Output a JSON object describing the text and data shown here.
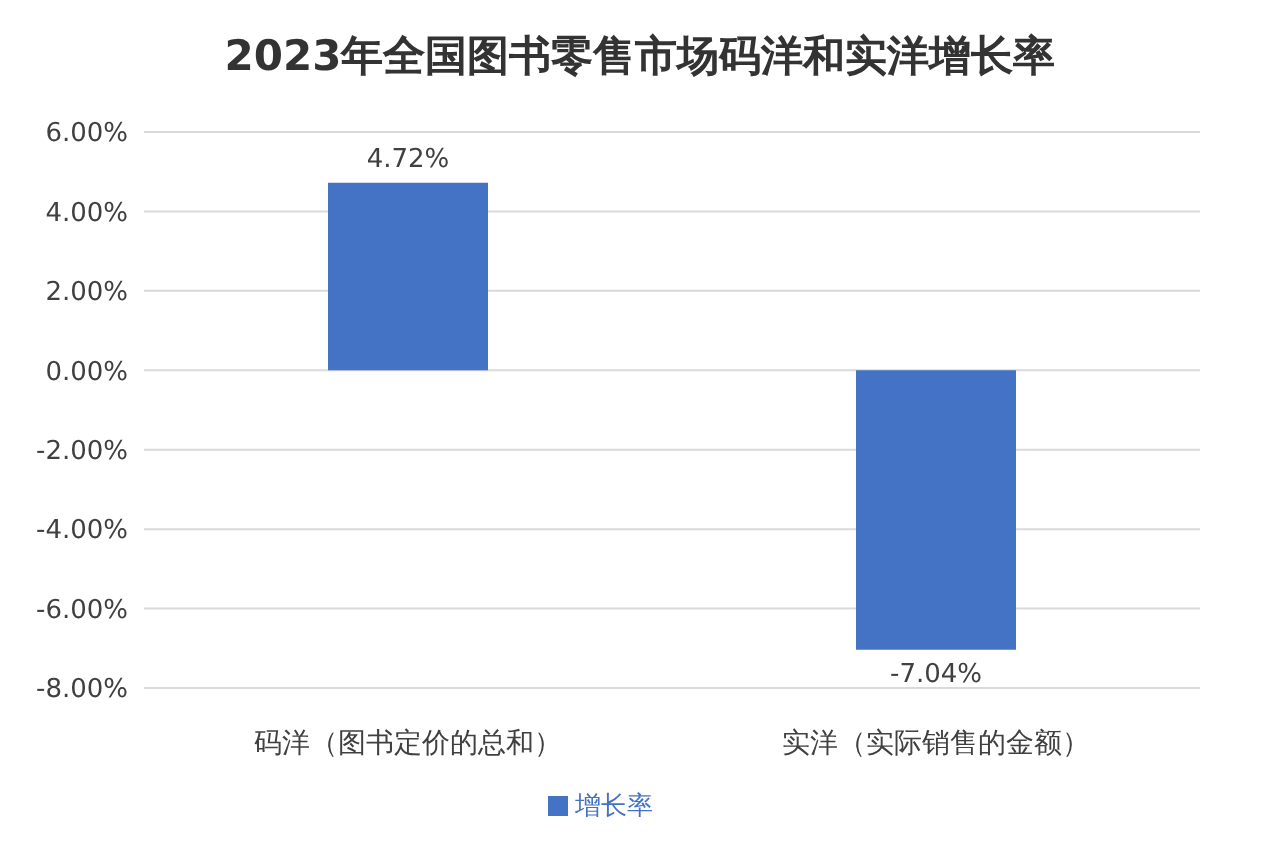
{
  "chart_data": {
    "type": "bar",
    "title": "2023年全国图书零售市场码洋和实洋增长率",
    "categories": [
      "码洋（图书定价的总和）",
      "实洋（实际销售的金额）"
    ],
    "series": [
      {
        "name": "增长率",
        "color": "#4472c4",
        "values": [
          4.72,
          -7.04
        ],
        "value_labels": [
          "4.72%",
          "-7.04%"
        ]
      }
    ],
    "ylim": [
      -8,
      6
    ],
    "yticks": [
      {
        "value": 6,
        "label": "6.00%"
      },
      {
        "value": 4,
        "label": "4.00%"
      },
      {
        "value": 2,
        "label": "2.00%"
      },
      {
        "value": 0,
        "label": "0.00%"
      },
      {
        "value": -2,
        "label": "-2.00%"
      },
      {
        "value": -4,
        "label": "-4.00%"
      },
      {
        "value": -6,
        "label": "-6.00%"
      },
      {
        "value": -8,
        "label": "-8.00%"
      }
    ],
    "grid": "y",
    "legend": "bottom"
  }
}
